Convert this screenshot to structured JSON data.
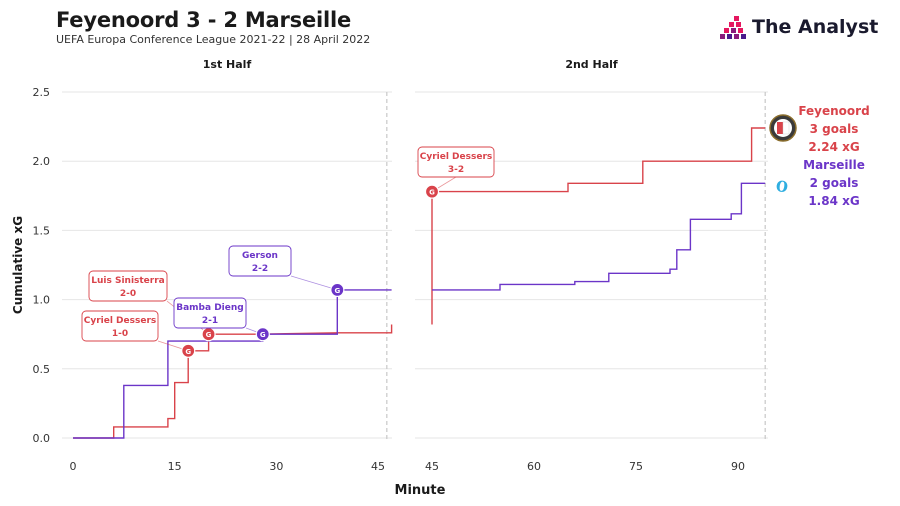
{
  "header": {
    "title": "Feyenoord 3 - 2 Marseille",
    "subtitle": "UEFA Europa Conference League 2021-22 | 28 April 2022",
    "brand": "The Analyst"
  },
  "colors": {
    "feyenoord": "#d9434a",
    "marseille": "#6b35c8",
    "grid": "#e6e6e6",
    "dashed": "#c8c8c8"
  },
  "chart_data": {
    "type": "line",
    "ylabel": "Cumulative xG",
    "xlabel": "Minute",
    "ylim": [
      0,
      2.5
    ],
    "yticks": [
      "0.0",
      "0.5",
      "1.0",
      "1.5",
      "2.0",
      "2.5"
    ],
    "panels": [
      {
        "title": "1st Half",
        "xlim": [
          0,
          47
        ],
        "ticks": [
          0,
          15,
          30,
          45
        ],
        "tick_labels": [
          "0",
          "15",
          "30",
          "45"
        ],
        "dashed_at": 46.3
      },
      {
        "title": "2nd Half",
        "xlim": [
          45,
          96
        ],
        "ticks": [
          45,
          60,
          75,
          90
        ],
        "tick_labels": [
          "45",
          "60",
          "75",
          "90"
        ],
        "dashed_at": 94
      }
    ],
    "series": [
      {
        "name": "Feyenoord",
        "color": "#d9434a",
        "end_labels": [
          "Feyenoord",
          "3 goals",
          "2.24 xG"
        ],
        "first_half": [
          [
            0,
            0
          ],
          [
            6,
            0
          ],
          [
            6,
            0.08
          ],
          [
            14,
            0.08
          ],
          [
            14,
            0.14
          ],
          [
            15,
            0.14
          ],
          [
            15,
            0.4
          ],
          [
            17,
            0.4
          ],
          [
            17,
            0.63
          ],
          [
            20,
            0.63
          ],
          [
            20,
            0.75
          ],
          [
            27,
            0.75
          ],
          [
            27,
            0.75
          ],
          [
            39,
            0.76
          ],
          [
            47,
            0.76
          ],
          [
            47,
            0.82
          ]
        ],
        "second_half": [
          [
            45,
            0.82
          ],
          [
            45,
            1.78
          ],
          [
            65,
            1.78
          ],
          [
            65,
            1.84
          ],
          [
            76,
            1.84
          ],
          [
            76,
            2.0
          ],
          [
            92,
            2.0
          ],
          [
            92,
            2.24
          ],
          [
            94,
            2.24
          ]
        ]
      },
      {
        "name": "Marseille",
        "color": "#6b35c8",
        "end_labels": [
          "Marseille",
          "2 goals",
          "1.84 xG"
        ],
        "first_half": [
          [
            0,
            0
          ],
          [
            7.5,
            0
          ],
          [
            7.5,
            0.38
          ],
          [
            14,
            0.38
          ],
          [
            14,
            0.7
          ],
          [
            28,
            0.7
          ],
          [
            28,
            0.75
          ],
          [
            39,
            0.75
          ],
          [
            39,
            1.07
          ],
          [
            47,
            1.07
          ]
        ],
        "second_half": [
          [
            45,
            1.07
          ],
          [
            55,
            1.07
          ],
          [
            55,
            1.11
          ],
          [
            66,
            1.11
          ],
          [
            66,
            1.13
          ],
          [
            71,
            1.13
          ],
          [
            71,
            1.19
          ],
          [
            80,
            1.19
          ],
          [
            80,
            1.22
          ],
          [
            81,
            1.22
          ],
          [
            81,
            1.36
          ],
          [
            83,
            1.36
          ],
          [
            83,
            1.58
          ],
          [
            89,
            1.58
          ],
          [
            89,
            1.62
          ],
          [
            90.5,
            1.62
          ],
          [
            90.5,
            1.84
          ],
          [
            94,
            1.84
          ]
        ]
      }
    ],
    "goals": [
      {
        "team": "Feyenoord",
        "half": 1,
        "minute": 17,
        "xg": 0.63,
        "marker": "G",
        "label": [
          "Cyriel Dessers",
          "1-0"
        ]
      },
      {
        "team": "Feyenoord",
        "half": 1,
        "minute": 20,
        "xg": 0.75,
        "marker": "G",
        "label": [
          "Luis Sinisterra",
          "2-0"
        ]
      },
      {
        "team": "Marseille",
        "half": 1,
        "minute": 28,
        "xg": 0.75,
        "marker": "G",
        "label": [
          "Bamba Dieng",
          "2-1"
        ]
      },
      {
        "team": "Marseille",
        "half": 1,
        "minute": 39,
        "xg": 1.07,
        "marker": "G",
        "label": [
          "Gerson",
          "2-2"
        ]
      },
      {
        "team": "Feyenoord",
        "half": 2,
        "minute": 45,
        "xg": 1.78,
        "marker": "G",
        "label": [
          "Cyriel Dessers",
          "3-2"
        ]
      }
    ]
  }
}
